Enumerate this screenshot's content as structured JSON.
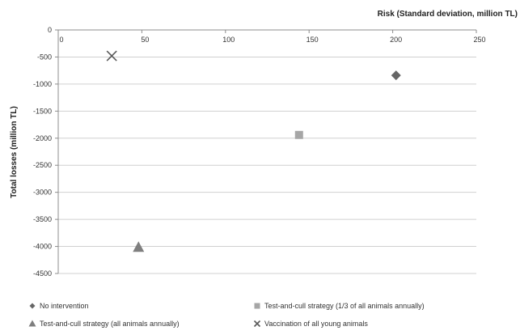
{
  "chart_data": {
    "type": "scatter",
    "xlabel": "Risk (Standard deviation, million TL)",
    "ylabel": "Total losses (million TL)",
    "xlim": [
      0,
      250
    ],
    "ylim": [
      -4500,
      0
    ],
    "x_ticks": [
      0,
      50,
      100,
      150,
      200,
      250
    ],
    "y_ticks": [
      0,
      -500,
      -1000,
      -1500,
      -2000,
      -2500,
      -3000,
      -3500,
      -4000,
      -4500
    ],
    "x_axis_position": "top",
    "grid": "horizontal",
    "legend_position": "bottom",
    "series": [
      {
        "name": "No intervention",
        "marker": "diamond",
        "color": "#666666",
        "x": [
          202
        ],
        "y": [
          -840
        ]
      },
      {
        "name": "Test-and-cull strategy (1/3 of all animals annually)",
        "marker": "square",
        "color": "#a6a6a6",
        "x": [
          144
        ],
        "y": [
          -1940
        ]
      },
      {
        "name": "Test-and-cull strategy (all animals annually)",
        "marker": "triangle",
        "color": "#7f7f7f",
        "x": [
          48
        ],
        "y": [
          -4010
        ]
      },
      {
        "name": "Vaccination of all young animals",
        "marker": "x",
        "color": "#595959",
        "x": [
          32
        ],
        "y": [
          -480
        ]
      }
    ]
  }
}
